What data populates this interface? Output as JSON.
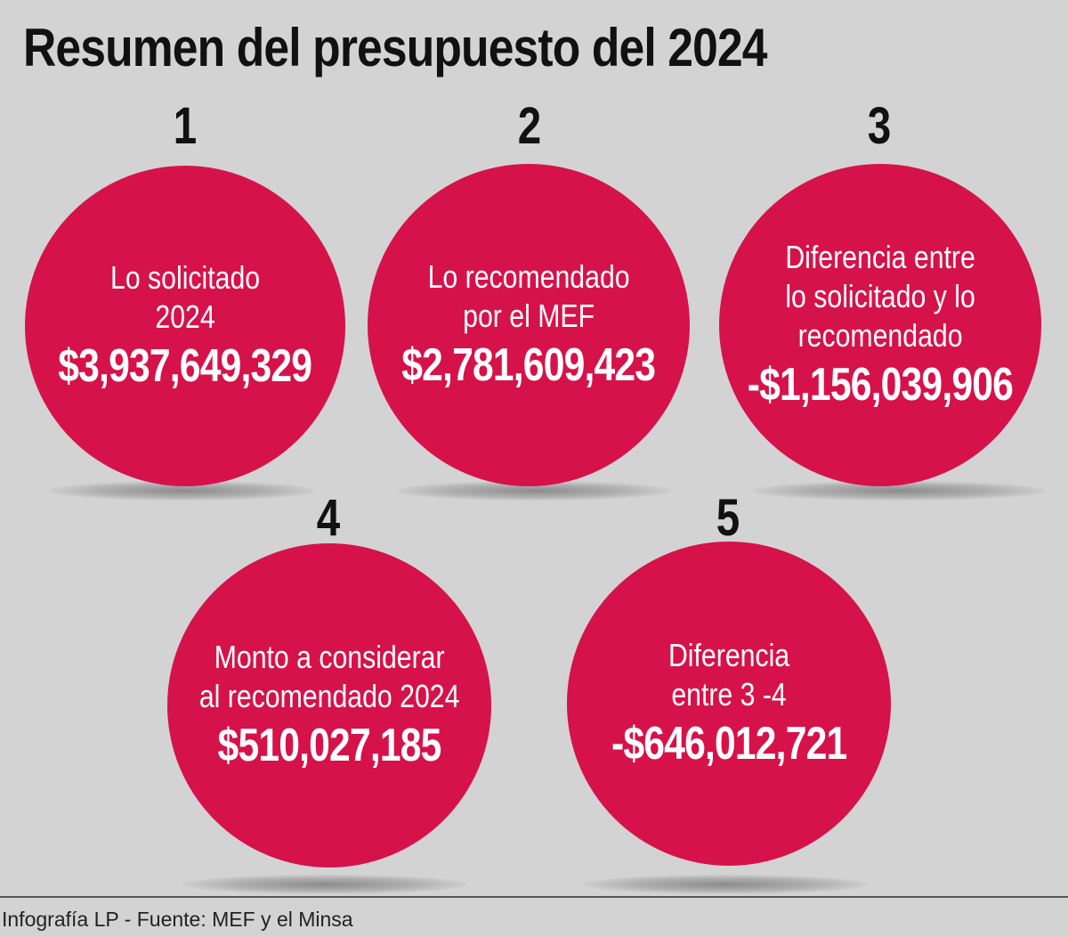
{
  "title": "Resumen del presupuesto del 2024",
  "colors": {
    "background": "#d3d3d3",
    "circle": "#d6124a",
    "text_dark": "#111111",
    "text_light": "#ffffff"
  },
  "items": [
    {
      "number": "1",
      "label": "Lo solicitado\n2024",
      "value": "$3,937,649,329"
    },
    {
      "number": "2",
      "label": "Lo recomendado\npor el MEF",
      "value": "$2,781,609,423"
    },
    {
      "number": "3",
      "label": "Diferencia entre\nlo solicitado y lo\nrecomendado",
      "value": "-$1,156,039,906"
    },
    {
      "number": "4",
      "label": "Monto a considerar\nal recomendado 2024",
      "value": "$510,027,185"
    },
    {
      "number": "5",
      "label": "Diferencia\nentre 3 -4",
      "value": "-$646,012,721"
    }
  ],
  "footer": "Infografía LP - Fuente: MEF y el Minsa"
}
